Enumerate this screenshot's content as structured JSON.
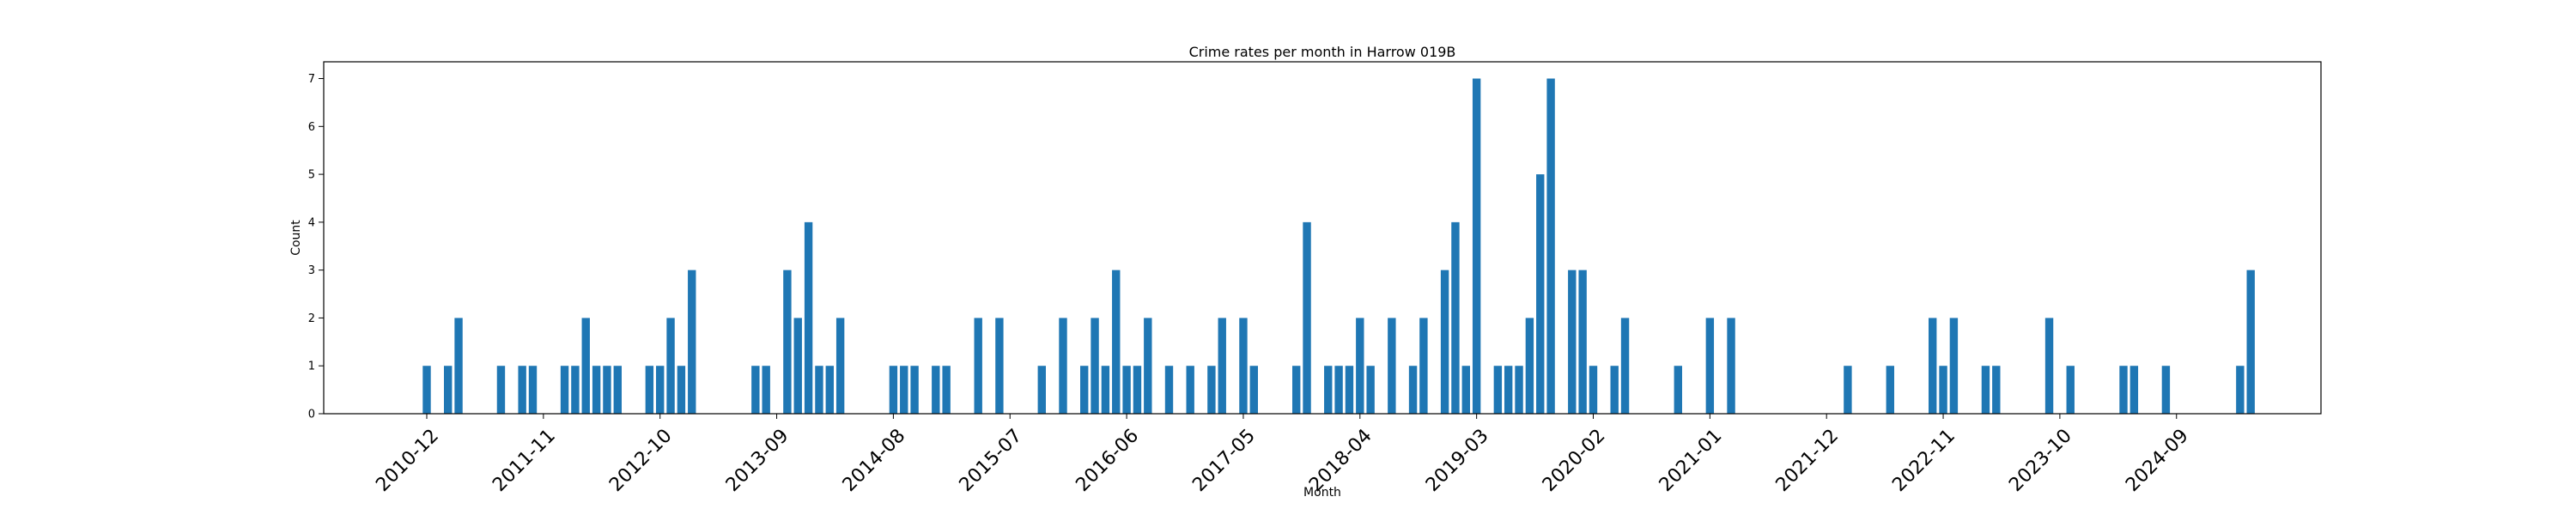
{
  "chart_data": {
    "type": "bar",
    "title": "Crime rates per month in Harrow 019B",
    "xlabel": "Month",
    "ylabel": "Count",
    "ylim": [
      0,
      7.35
    ],
    "yticks": [
      0,
      1,
      2,
      3,
      4,
      5,
      6,
      7
    ],
    "xticks": [
      "2010-12",
      "2011-11",
      "2012-10",
      "2013-09",
      "2014-08",
      "2015-07",
      "2016-06",
      "2017-05",
      "2018-04",
      "2019-03",
      "2020-02",
      "2021-01",
      "2021-12",
      "2022-11",
      "2023-10",
      "2024-09"
    ],
    "grid": false,
    "bar_color": "#1f77b4",
    "categories": [
      "2010-12",
      "2011-02",
      "2011-03",
      "2011-07",
      "2011-09",
      "2011-10",
      "2012-01",
      "2012-02",
      "2012-03",
      "2012-04",
      "2012-05",
      "2012-06",
      "2012-09",
      "2012-10",
      "2012-11",
      "2012-12",
      "2013-01",
      "2013-07",
      "2013-08",
      "2013-10",
      "2013-11",
      "2013-12",
      "2014-01",
      "2014-02",
      "2014-03",
      "2014-08",
      "2014-09",
      "2014-10",
      "2014-12",
      "2015-01",
      "2015-04",
      "2015-06",
      "2015-10",
      "2015-12",
      "2016-02",
      "2016-03",
      "2016-04",
      "2016-05",
      "2016-06",
      "2016-07",
      "2016-08",
      "2016-10",
      "2016-12",
      "2017-02",
      "2017-03",
      "2017-05",
      "2017-06",
      "2017-10",
      "2017-11",
      "2018-01",
      "2018-02",
      "2018-03",
      "2018-04",
      "2018-05",
      "2018-07",
      "2018-09",
      "2018-10",
      "2018-12",
      "2019-01",
      "2019-02",
      "2019-03",
      "2019-05",
      "2019-06",
      "2019-07",
      "2019-08",
      "2019-09",
      "2019-10",
      "2019-12",
      "2020-01",
      "2020-02",
      "2020-04",
      "2020-05",
      "2020-10",
      "2021-01",
      "2021-03",
      "2022-02",
      "2022-06",
      "2022-10",
      "2022-11",
      "2022-12",
      "2023-03",
      "2023-04",
      "2023-09",
      "2023-11",
      "2024-04",
      "2024-05",
      "2024-08",
      "2025-03",
      "2025-04"
    ],
    "values": [
      1,
      1,
      2,
      1,
      1,
      1,
      1,
      1,
      2,
      1,
      1,
      1,
      1,
      1,
      2,
      1,
      3,
      1,
      1,
      3,
      2,
      4,
      1,
      1,
      2,
      1,
      1,
      1,
      1,
      1,
      2,
      2,
      1,
      2,
      1,
      2,
      1,
      3,
      1,
      1,
      2,
      1,
      1,
      1,
      2,
      2,
      1,
      1,
      4,
      1,
      1,
      1,
      2,
      1,
      2,
      1,
      2,
      3,
      4,
      1,
      7,
      1,
      1,
      1,
      2,
      5,
      7,
      3,
      3,
      1,
      1,
      2,
      1,
      2,
      2,
      1,
      1,
      2,
      1,
      2,
      1,
      1,
      2,
      1,
      1,
      1,
      1,
      1,
      3
    ]
  }
}
